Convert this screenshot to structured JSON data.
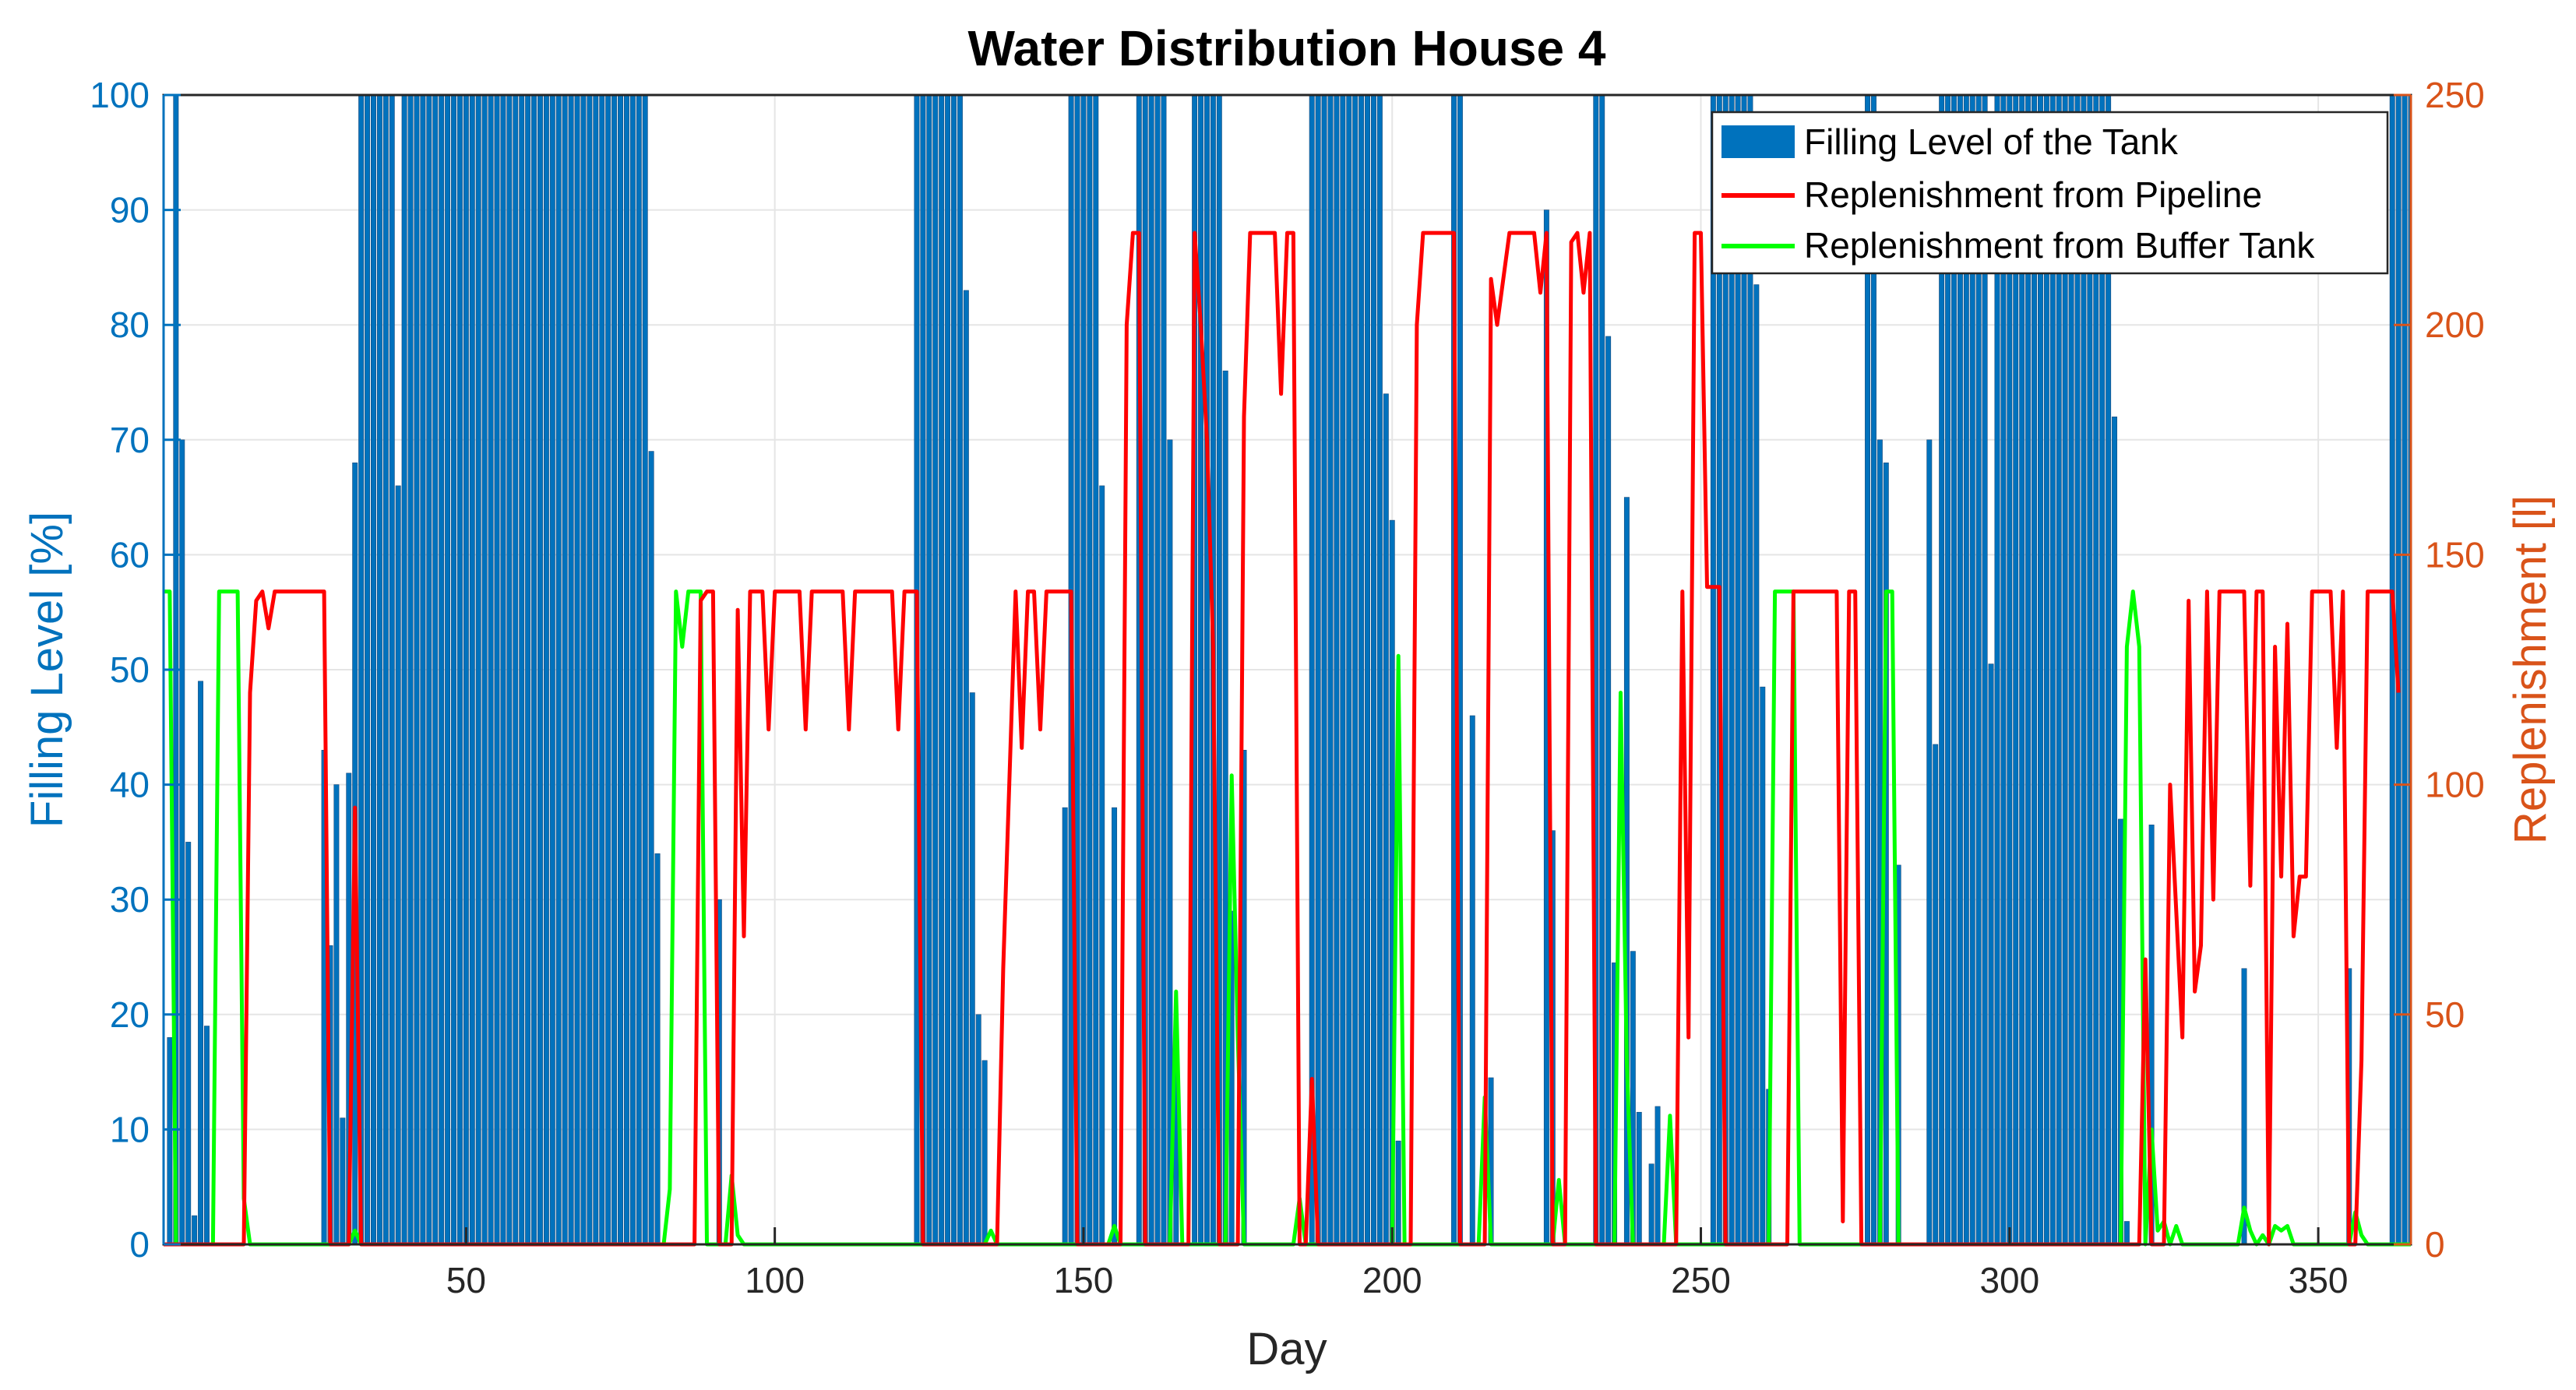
{
  "chart_data": {
    "type": "bar+line",
    "title": "Water Distribution House 4",
    "xlabel": "Day",
    "ylabel_left": "Filling Level [%]",
    "ylabel_right": "Replenishment [l]",
    "xlim": [
      1,
      365
    ],
    "ylim_left": [
      0,
      100
    ],
    "ylim_right": [
      0,
      250
    ],
    "x_ticks": [
      50,
      100,
      150,
      200,
      250,
      300,
      350
    ],
    "y_left_ticks": [
      0,
      10,
      20,
      30,
      40,
      50,
      60,
      70,
      80,
      90,
      100
    ],
    "y_right_ticks": [
      0,
      50,
      100,
      150,
      200,
      250
    ],
    "grid": true,
    "legend_position": "top-right",
    "colors": {
      "bars": "#0072BD",
      "pipeline": "#FF0000",
      "buffer": "#00FF00",
      "left_axis": "#0072BD",
      "right_axis": "#D95319",
      "grid": "#E5E5E5",
      "axis": "#262626"
    },
    "series": [
      {
        "name": "Filling Level of the Tank",
        "type": "bar",
        "axis": "left",
        "segments": [
          [
            2,
            2,
            18
          ],
          [
            3,
            3,
            100
          ],
          [
            4,
            4,
            70
          ],
          [
            5,
            5,
            35
          ],
          [
            6,
            6,
            2.5
          ],
          [
            7,
            7,
            49
          ],
          [
            8,
            8,
            19
          ],
          [
            27,
            27,
            43
          ],
          [
            28,
            28,
            26
          ],
          [
            29,
            29,
            40
          ],
          [
            30,
            30,
            11
          ],
          [
            31,
            31,
            41
          ],
          [
            32,
            32,
            68
          ],
          [
            33,
            38,
            100
          ],
          [
            39,
            39,
            66
          ],
          [
            40,
            79,
            100
          ],
          [
            80,
            80,
            69
          ],
          [
            81,
            81,
            34
          ],
          [
            91,
            91,
            30
          ],
          [
            123,
            130,
            100
          ],
          [
            131,
            131,
            83
          ],
          [
            132,
            132,
            48
          ],
          [
            133,
            133,
            20
          ],
          [
            134,
            134,
            16
          ],
          [
            147,
            147,
            38
          ],
          [
            148,
            152,
            100
          ],
          [
            153,
            153,
            66
          ],
          [
            155,
            155,
            38
          ],
          [
            159,
            163,
            100
          ],
          [
            164,
            164,
            70
          ],
          [
            165,
            165,
            15.5
          ],
          [
            168,
            172,
            100
          ],
          [
            173,
            173,
            76
          ],
          [
            174,
            174,
            29
          ],
          [
            176,
            176,
            43
          ],
          [
            187,
            198,
            100
          ],
          [
            199,
            199,
            74
          ],
          [
            200,
            200,
            63
          ],
          [
            201,
            201,
            9
          ],
          [
            210,
            211,
            100
          ],
          [
            213,
            213,
            46
          ],
          [
            216,
            216,
            14.5
          ],
          [
            225,
            225,
            90
          ],
          [
            226,
            226,
            36
          ],
          [
            233,
            234,
            100
          ],
          [
            235,
            235,
            79
          ],
          [
            236,
            236,
            24.5
          ],
          [
            238,
            238,
            65
          ],
          [
            239,
            239,
            25.5
          ],
          [
            240,
            240,
            11.5
          ],
          [
            242,
            242,
            7
          ],
          [
            243,
            243,
            12
          ],
          [
            252,
            258,
            100
          ],
          [
            259,
            259,
            83.5
          ],
          [
            260,
            260,
            48.5
          ],
          [
            261,
            261,
            13.5
          ],
          [
            277,
            278,
            100
          ],
          [
            279,
            279,
            70
          ],
          [
            280,
            280,
            68
          ],
          [
            282,
            282,
            33
          ],
          [
            287,
            287,
            70
          ],
          [
            288,
            288,
            43.5
          ],
          [
            289,
            296,
            100
          ],
          [
            297,
            297,
            50.5
          ],
          [
            298,
            316,
            100
          ],
          [
            317,
            317,
            72
          ],
          [
            318,
            318,
            37
          ],
          [
            319,
            319,
            2
          ],
          [
            323,
            323,
            36.5
          ],
          [
            338,
            338,
            24
          ],
          [
            355,
            355,
            24
          ],
          [
            362,
            365,
            100
          ]
        ]
      },
      {
        "name": "Replenishment from Pipeline",
        "type": "line",
        "axis": "right",
        "points": [
          [
            1,
            0
          ],
          [
            14,
            0
          ],
          [
            15,
            120
          ],
          [
            16,
            140
          ],
          [
            17,
            142
          ],
          [
            18,
            134
          ],
          [
            19,
            142
          ],
          [
            27,
            142
          ],
          [
            28,
            0
          ],
          [
            31,
            0
          ],
          [
            32,
            95
          ],
          [
            33,
            0
          ],
          [
            87,
            0
          ],
          [
            88,
            140
          ],
          [
            89,
            142
          ],
          [
            90,
            142
          ],
          [
            91,
            0
          ],
          [
            93,
            0
          ],
          [
            94,
            138
          ],
          [
            95,
            67
          ],
          [
            96,
            142
          ],
          [
            98,
            142
          ],
          [
            99,
            112
          ],
          [
            100,
            142
          ],
          [
            104,
            142
          ],
          [
            105,
            112
          ],
          [
            106,
            142
          ],
          [
            111,
            142
          ],
          [
            112,
            112
          ],
          [
            113,
            142
          ],
          [
            119,
            142
          ],
          [
            120,
            112
          ],
          [
            121,
            142
          ],
          [
            123,
            142
          ],
          [
            124,
            0
          ],
          [
            136,
            0
          ],
          [
            137,
            60
          ],
          [
            139,
            142
          ],
          [
            140,
            108
          ],
          [
            141,
            142
          ],
          [
            142,
            142
          ],
          [
            143,
            112
          ],
          [
            144,
            142
          ],
          [
            148,
            142
          ],
          [
            149,
            0
          ],
          [
            156,
            0
          ],
          [
            157,
            200
          ],
          [
            158,
            220
          ],
          [
            159,
            220
          ],
          [
            160,
            0
          ],
          [
            167,
            0
          ],
          [
            168,
            220
          ],
          [
            169,
            200
          ],
          [
            170,
            175
          ],
          [
            171,
            130
          ],
          [
            172,
            0
          ],
          [
            175,
            0
          ],
          [
            176,
            180
          ],
          [
            177,
            220
          ],
          [
            181,
            220
          ],
          [
            182,
            185
          ],
          [
            183,
            220
          ],
          [
            184,
            220
          ],
          [
            185,
            0
          ],
          [
            186,
            0
          ],
          [
            187,
            36
          ],
          [
            188,
            0
          ],
          [
            203,
            0
          ],
          [
            204,
            200
          ],
          [
            205,
            220
          ],
          [
            210,
            220
          ],
          [
            211,
            0
          ],
          [
            215,
            0
          ],
          [
            216,
            210
          ],
          [
            217,
            200
          ],
          [
            218,
            210
          ],
          [
            219,
            220
          ],
          [
            223,
            220
          ],
          [
            224,
            207
          ],
          [
            225,
            220
          ],
          [
            226,
            0
          ],
          [
            228,
            0
          ],
          [
            229,
            218
          ],
          [
            230,
            220
          ],
          [
            231,
            207
          ],
          [
            232,
            220
          ],
          [
            233,
            0
          ],
          [
            246,
            0
          ],
          [
            247,
            142
          ],
          [
            248,
            45
          ],
          [
            249,
            220
          ],
          [
            250,
            220
          ],
          [
            251,
            143
          ],
          [
            253,
            143
          ],
          [
            254,
            0
          ],
          [
            264,
            0
          ],
          [
            265,
            142
          ],
          [
            272,
            142
          ],
          [
            273,
            5
          ],
          [
            274,
            142
          ],
          [
            275,
            142
          ],
          [
            276,
            0
          ],
          [
            321,
            0
          ],
          [
            322,
            62
          ],
          [
            323,
            0
          ],
          [
            325,
            0
          ],
          [
            326,
            100
          ],
          [
            328,
            45
          ],
          [
            329,
            140
          ],
          [
            330,
            55
          ],
          [
            331,
            65
          ],
          [
            332,
            142
          ],
          [
            333,
            75
          ],
          [
            334,
            142
          ],
          [
            338,
            142
          ],
          [
            339,
            78
          ],
          [
            340,
            142
          ],
          [
            341,
            142
          ],
          [
            342,
            0
          ],
          [
            343,
            130
          ],
          [
            344,
            80
          ],
          [
            345,
            135
          ],
          [
            346,
            67
          ],
          [
            347,
            80
          ],
          [
            348,
            80
          ],
          [
            349,
            142
          ],
          [
            352,
            142
          ],
          [
            353,
            108
          ],
          [
            354,
            142
          ],
          [
            355,
            0
          ],
          [
            356,
            0
          ],
          [
            357,
            40
          ],
          [
            358,
            142
          ],
          [
            359,
            142
          ],
          [
            360,
            142
          ],
          [
            362,
            142
          ],
          [
            363,
            120
          ]
        ]
      },
      {
        "name": "Replenishment from Buffer Tank",
        "type": "line",
        "axis": "right",
        "points": [
          [
            1,
            142
          ],
          [
            2,
            142
          ],
          [
            3,
            0
          ],
          [
            9,
            0
          ],
          [
            10,
            142
          ],
          [
            12,
            142
          ],
          [
            13,
            142
          ],
          [
            14,
            10
          ],
          [
            15,
            0
          ],
          [
            31,
            0
          ],
          [
            32,
            3
          ],
          [
            33,
            0
          ],
          [
            82,
            0
          ],
          [
            83,
            12
          ],
          [
            84,
            142
          ],
          [
            85,
            130
          ],
          [
            86,
            142
          ],
          [
            88,
            142
          ],
          [
            89,
            0
          ],
          [
            92,
            0
          ],
          [
            93,
            15
          ],
          [
            94,
            2
          ],
          [
            95,
            0
          ],
          [
            134,
            0
          ],
          [
            135,
            3
          ],
          [
            136,
            0
          ],
          [
            154,
            0
          ],
          [
            155,
            4
          ],
          [
            156,
            0
          ],
          [
            164,
            0
          ],
          [
            165,
            55
          ],
          [
            166,
            0
          ],
          [
            173,
            0
          ],
          [
            174,
            102
          ],
          [
            175,
            45
          ],
          [
            176,
            0
          ],
          [
            184,
            0
          ],
          [
            185,
            10
          ],
          [
            186,
            0
          ],
          [
            200,
            0
          ],
          [
            201,
            128
          ],
          [
            202,
            0
          ],
          [
            214,
            0
          ],
          [
            215,
            32
          ],
          [
            216,
            0
          ],
          [
            226,
            0
          ],
          [
            227,
            14
          ],
          [
            228,
            0
          ],
          [
            236,
            0
          ],
          [
            237,
            120
          ],
          [
            238,
            40
          ],
          [
            239,
            0
          ],
          [
            244,
            0
          ],
          [
            245,
            28
          ],
          [
            246,
            0
          ],
          [
            261,
            0
          ],
          [
            262,
            142
          ],
          [
            265,
            142
          ],
          [
            266,
            0
          ],
          [
            279,
            0
          ],
          [
            280,
            142
          ],
          [
            281,
            142
          ],
          [
            282,
            0
          ],
          [
            318,
            0
          ],
          [
            319,
            130
          ],
          [
            320,
            142
          ],
          [
            321,
            130
          ],
          [
            322,
            0
          ],
          [
            323,
            25
          ],
          [
            324,
            3
          ],
          [
            325,
            5
          ],
          [
            326,
            0
          ],
          [
            327,
            4
          ],
          [
            328,
            0
          ],
          [
            337,
            0
          ],
          [
            338,
            8
          ],
          [
            339,
            3
          ],
          [
            340,
            0
          ],
          [
            341,
            2
          ],
          [
            342,
            0
          ],
          [
            343,
            4
          ],
          [
            344,
            3
          ],
          [
            345,
            4
          ],
          [
            346,
            0
          ],
          [
            355,
            0
          ],
          [
            356,
            7
          ],
          [
            357,
            2
          ],
          [
            358,
            0
          ],
          [
            365,
            0
          ]
        ]
      }
    ]
  }
}
